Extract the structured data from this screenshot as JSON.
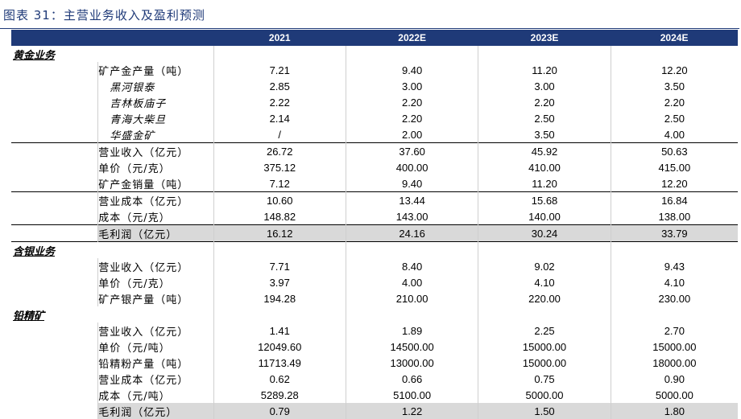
{
  "title": "图表 31：主营业务收入及盈利预测",
  "headers": [
    "2021",
    "2022E",
    "2023E",
    "2024E"
  ],
  "sections": {
    "gold": "黄金业务",
    "silver": "含银业务",
    "lead": "铅精矿"
  },
  "rows": [
    {
      "label": "矿产金产量（吨）",
      "values": [
        "7.21",
        "9.40",
        "11.20",
        "12.20"
      ]
    },
    {
      "label": "黑河银泰",
      "values": [
        "2.85",
        "3.00",
        "3.00",
        "3.50"
      ]
    },
    {
      "label": "吉林板庙子",
      "values": [
        "2.22",
        "2.20",
        "2.20",
        "2.20"
      ]
    },
    {
      "label": "青海大柴旦",
      "values": [
        "2.14",
        "2.20",
        "2.50",
        "2.50"
      ]
    },
    {
      "label": "华盛金矿",
      "values": [
        "/",
        "2.00",
        "3.50",
        "4.00"
      ]
    },
    {
      "label": "营业收入（亿元）",
      "values": [
        "26.72",
        "37.60",
        "45.92",
        "50.63"
      ]
    },
    {
      "label": "单价（元/克）",
      "values": [
        "375.12",
        "400.00",
        "410.00",
        "415.00"
      ]
    },
    {
      "label": "矿产金销量（吨）",
      "values": [
        "7.12",
        "9.40",
        "11.20",
        "12.20"
      ]
    },
    {
      "label": "营业成本（亿元）",
      "values": [
        "10.60",
        "13.44",
        "15.68",
        "16.84"
      ]
    },
    {
      "label": "成本（元/克）",
      "values": [
        "148.82",
        "143.00",
        "140.00",
        "138.00"
      ]
    },
    {
      "label": "毛利润（亿元）",
      "values": [
        "16.12",
        "24.16",
        "30.24",
        "33.79"
      ]
    },
    {
      "label": "营业收入（亿元）",
      "values": [
        "7.71",
        "8.40",
        "9.02",
        "9.43"
      ]
    },
    {
      "label": "单价（元/克）",
      "values": [
        "3.97",
        "4.00",
        "4.10",
        "4.10"
      ]
    },
    {
      "label": "矿产银产量（吨）",
      "values": [
        "194.28",
        "210.00",
        "220.00",
        "230.00"
      ]
    },
    {
      "label": "营业收入（亿元）",
      "values": [
        "1.41",
        "1.89",
        "2.25",
        "2.70"
      ]
    },
    {
      "label": "单价（元/吨）",
      "values": [
        "12049.60",
        "14500.00",
        "15000.00",
        "15000.00"
      ]
    },
    {
      "label": "铅精粉产量（吨）",
      "values": [
        "11713.49",
        "13000.00",
        "15000.00",
        "18000.00"
      ]
    },
    {
      "label": "营业成本（亿元）",
      "values": [
        "0.62",
        "0.66",
        "0.75",
        "0.90"
      ]
    },
    {
      "label": "成本（元/吨）",
      "values": [
        "5289.28",
        "5100.00",
        "5000.00",
        "5000.00"
      ]
    },
    {
      "label": "毛利润（亿元）",
      "values": [
        "0.79",
        "1.22",
        "1.50",
        "1.80"
      ]
    }
  ]
}
